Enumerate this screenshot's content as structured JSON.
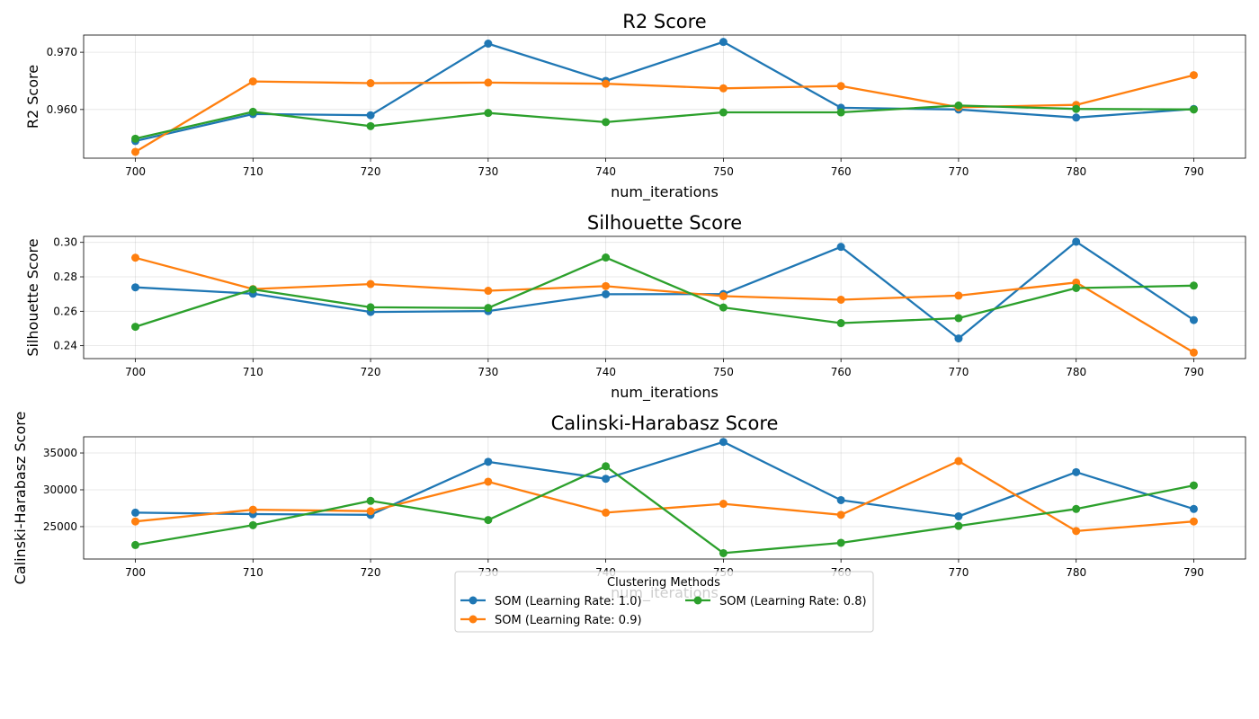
{
  "legend": {
    "title": "Clustering Methods",
    "position": "bottom-center"
  },
  "chart_data": [
    {
      "type": "line",
      "title": "R2 Score",
      "xlabel": "num_iterations",
      "ylabel": "R2 Score",
      "grid": true,
      "x": [
        700,
        710,
        720,
        730,
        740,
        750,
        760,
        770,
        780,
        790
      ],
      "xticks": [
        "700",
        "710",
        "720",
        "730",
        "740",
        "750",
        "760",
        "770",
        "780",
        "790"
      ],
      "ylim": [
        0.9515,
        0.973
      ],
      "yticks": [
        0.96,
        0.97
      ],
      "ytick_labels": [
        "0.960",
        "0.970"
      ],
      "series": [
        {
          "name": "SOM (Learning Rate: 1.0)",
          "color": "#1f77b4",
          "values": [
            0.9545,
            0.9592,
            0.959,
            0.9715,
            0.965,
            0.9718,
            0.9603,
            0.96,
            0.9586,
            0.9601
          ]
        },
        {
          "name": "SOM (Learning Rate: 0.9)",
          "color": "#ff7f0e",
          "values": [
            0.9526,
            0.9649,
            0.9646,
            0.9647,
            0.9645,
            0.9637,
            0.9641,
            0.9604,
            0.9608,
            0.966
          ]
        },
        {
          "name": "SOM (Learning Rate: 0.8)",
          "color": "#2ca02c",
          "values": [
            0.9549,
            0.9596,
            0.9571,
            0.9594,
            0.9578,
            0.9595,
            0.9595,
            0.9607,
            0.9601,
            0.96
          ]
        }
      ]
    },
    {
      "type": "line",
      "title": "Silhouette Score",
      "xlabel": "num_iterations",
      "ylabel": "Silhouette Score",
      "grid": true,
      "x": [
        700,
        710,
        720,
        730,
        740,
        750,
        760,
        770,
        780,
        790
      ],
      "xticks": [
        "700",
        "710",
        "720",
        "730",
        "740",
        "750",
        "760",
        "770",
        "780",
        "790"
      ],
      "ylim": [
        0.2325,
        0.3035
      ],
      "yticks": [
        0.24,
        0.26,
        0.28,
        0.3
      ],
      "ytick_labels": [
        "0.24",
        "0.26",
        "0.28",
        "0.30"
      ],
      "series": [
        {
          "name": "SOM (Learning Rate: 1.0)",
          "color": "#1f77b4",
          "values": [
            0.2739,
            0.2702,
            0.2596,
            0.2601,
            0.2699,
            0.27,
            0.2974,
            0.2442,
            0.3004,
            0.2549
          ]
        },
        {
          "name": "SOM (Learning Rate: 0.9)",
          "color": "#ff7f0e",
          "values": [
            0.2911,
            0.2729,
            0.2758,
            0.2719,
            0.2746,
            0.2688,
            0.2667,
            0.2691,
            0.2767,
            0.236
          ]
        },
        {
          "name": "SOM (Learning Rate: 0.8)",
          "color": "#2ca02c",
          "values": [
            0.251,
            0.2727,
            0.2623,
            0.2619,
            0.2912,
            0.2622,
            0.2531,
            0.256,
            0.2735,
            0.2749
          ]
        }
      ]
    },
    {
      "type": "line",
      "title": "Calinski-Harabasz Score",
      "xlabel": "num_iterations",
      "ylabel": "Calinski-Harabasz Score",
      "grid": true,
      "x": [
        700,
        710,
        720,
        730,
        740,
        750,
        760,
        770,
        780,
        790
      ],
      "xticks": [
        "700",
        "710",
        "720",
        "730",
        "740",
        "750",
        "760",
        "770",
        "780",
        "790"
      ],
      "ylim": [
        20600,
        37200
      ],
      "yticks": [
        25000,
        30000,
        35000
      ],
      "ytick_labels": [
        "25000",
        "30000",
        "35000"
      ],
      "series": [
        {
          "name": "SOM (Learning Rate: 1.0)",
          "color": "#1f77b4",
          "values": [
            26900,
            26700,
            26600,
            33800,
            31500,
            36500,
            28600,
            26400,
            32400,
            27400
          ]
        },
        {
          "name": "SOM (Learning Rate: 0.9)",
          "color": "#ff7f0e",
          "values": [
            25700,
            27300,
            27100,
            31100,
            26900,
            28100,
            26600,
            33900,
            24400,
            25700
          ]
        },
        {
          "name": "SOM (Learning Rate: 0.8)",
          "color": "#2ca02c",
          "values": [
            22500,
            25200,
            28500,
            25900,
            33200,
            21400,
            22800,
            25100,
            27400,
            30600
          ]
        }
      ]
    }
  ]
}
